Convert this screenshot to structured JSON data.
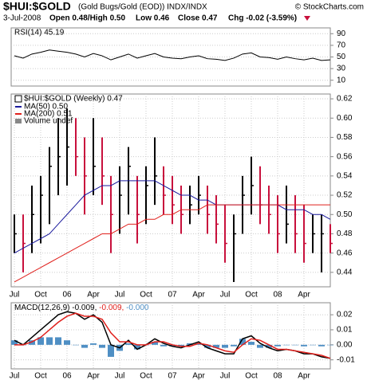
{
  "header": {
    "symbol": "$HUI:$GOLD",
    "description": "(Gold Bugs/Gold (EOD)) INDX/INDX",
    "source": "© StockCharts.com",
    "date": "3-Jul-2008",
    "open_high": "Open 0.48/High 0.50",
    "low": "Low 0.46",
    "close": "Close 0.47",
    "change": "Chg -0.02 (-3.59%)"
  },
  "chart_data": [
    {
      "type": "line",
      "ylim": [
        0,
        100
      ],
      "yticks": [
        10,
        30,
        50,
        70,
        90
      ],
      "grid": true,
      "series": [
        {
          "name": "RSI(14) 45.19",
          "color": "#000000",
          "values": [
            52,
            48,
            55,
            58,
            62,
            60,
            58,
            55,
            50,
            56,
            52,
            45,
            50,
            55,
            48,
            52,
            56,
            50,
            48,
            47,
            50,
            52,
            47,
            46,
            44,
            48,
            55,
            57,
            50,
            49,
            46,
            50,
            47,
            45,
            48,
            44,
            45
          ]
        }
      ]
    },
    {
      "type": "ohlc",
      "ylim": [
        0.425,
        0.625
      ],
      "grid": true,
      "yticks": [
        0.44,
        0.46,
        0.48,
        {
          "value": 0.5,
          "label": "0.50"
        },
        0.52,
        0.54,
        0.56,
        0.58,
        {
          "value": 0.6,
          "label": "0.60"
        },
        0.62
      ],
      "categories": [
        "Jul",
        null,
        null,
        "Oct",
        null,
        null,
        "06",
        null,
        null,
        "Apr",
        null,
        null,
        "Jul",
        null,
        null,
        "Oct",
        null,
        null,
        "07",
        null,
        null,
        "Apr",
        null,
        null,
        "Jul",
        null,
        null,
        "Oct",
        null,
        null,
        "08",
        null,
        null,
        "Apr",
        null,
        null,
        null
      ],
      "ohlc": {
        "name": "$HUI:$GOLD (Weekly) 0.47",
        "up_color": "#000000",
        "down_color": "#c8103c",
        "high": [
          0.5,
          0.5,
          0.53,
          0.54,
          0.57,
          0.6,
          0.61,
          0.6,
          0.58,
          0.6,
          0.58,
          0.54,
          0.55,
          0.57,
          0.54,
          0.55,
          0.58,
          0.55,
          0.54,
          0.53,
          0.53,
          0.54,
          0.53,
          0.52,
          0.51,
          0.5,
          0.54,
          0.56,
          0.55,
          0.53,
          0.52,
          0.53,
          0.52,
          0.51,
          0.5,
          0.5,
          0.49
        ],
        "low": [
          0.46,
          0.44,
          0.46,
          0.47,
          0.49,
          0.52,
          0.53,
          0.54,
          0.5,
          0.52,
          0.51,
          0.46,
          0.48,
          0.5,
          0.47,
          0.49,
          0.51,
          0.5,
          0.49,
          0.48,
          0.49,
          0.5,
          0.48,
          0.47,
          0.45,
          0.43,
          0.48,
          0.5,
          0.49,
          0.48,
          0.46,
          0.47,
          0.46,
          0.45,
          0.46,
          0.44,
          0.46
        ],
        "close": [
          0.48,
          0.47,
          0.5,
          0.52,
          0.55,
          0.56,
          0.57,
          0.56,
          0.54,
          0.55,
          0.54,
          0.5,
          0.52,
          0.55,
          0.5,
          0.53,
          0.54,
          0.52,
          0.51,
          0.5,
          0.51,
          0.52,
          0.5,
          0.49,
          0.47,
          0.48,
          0.52,
          0.53,
          0.51,
          0.5,
          0.48,
          0.49,
          0.48,
          0.47,
          0.48,
          0.48,
          0.47
        ]
      },
      "series": [
        {
          "name": "MA(50) 0.50",
          "color": "#1a1a9c",
          "values": [
            0.46,
            0.465,
            0.47,
            0.475,
            0.48,
            0.49,
            0.5,
            0.51,
            0.52,
            0.525,
            0.53,
            0.53,
            0.535,
            0.535,
            0.535,
            0.535,
            0.535,
            0.53,
            0.525,
            0.52,
            0.52,
            0.515,
            0.515,
            0.51,
            0.51,
            0.51,
            0.51,
            0.51,
            0.51,
            0.51,
            0.51,
            0.505,
            0.505,
            0.505,
            0.5,
            0.5,
            0.495
          ]
        },
        {
          "name": "MA(200) 0.51",
          "color": "#e0201c",
          "values": [
            0.43,
            0.435,
            0.44,
            0.445,
            0.45,
            0.455,
            0.46,
            0.465,
            0.47,
            0.475,
            0.48,
            0.48,
            0.485,
            0.49,
            0.49,
            0.495,
            0.495,
            0.5,
            0.5,
            0.505,
            0.505,
            0.505,
            0.51,
            0.51,
            0.51,
            0.51,
            0.51,
            0.51,
            0.51,
            0.51,
            0.51,
            0.51,
            0.51,
            0.51,
            0.51,
            0.51,
            0.51
          ]
        }
      ],
      "volume_label": "Volume undef"
    },
    {
      "type": "combo",
      "ylim": [
        -0.016,
        0.028
      ],
      "grid": true,
      "yticks": [
        -0.01,
        {
          "value": 0,
          "label": "0.00"
        },
        0.01,
        0.02
      ],
      "categories": [
        "Jul",
        null,
        null,
        "Oct",
        null,
        null,
        "06",
        null,
        null,
        "Apr",
        null,
        null,
        "Jul",
        null,
        null,
        "Oct",
        null,
        null,
        "07",
        null,
        null,
        "Apr",
        null,
        null,
        "Jul",
        null,
        null,
        "Oct",
        null,
        null,
        "08",
        null,
        null,
        "Apr",
        null,
        null,
        null
      ],
      "series": [
        {
          "name": "-0.000",
          "color": "#4f8fc4",
          "kind": "bar",
          "values": [
            0.003,
            0,
            0.003,
            0.005,
            0.005,
            0.005,
            0.003,
            0,
            -0.002,
            0.001,
            -0.002,
            -0.008,
            -0.004,
            0.001,
            -0.003,
            0,
            0.002,
            -0.001,
            -0.001,
            -0.001,
            0.001,
            0.001,
            -0.002,
            -0.002,
            -0.002,
            -0.001,
            0.004,
            0.002,
            -0.002,
            -0.002,
            -0.001,
            0,
            0,
            -0.001,
            0,
            -0.001,
            0
          ]
        },
        {
          "name": "MACD(12,26,9) -0.009,",
          "color": "#000000",
          "kind": "line",
          "values": [
            0.003,
            0.0,
            0.005,
            0.01,
            0.015,
            0.02,
            0.022,
            0.021,
            0.017,
            0.02,
            0.015,
            0.0,
            -0.002,
            0.003,
            -0.003,
            0.0,
            0.004,
            0.001,
            -0.001,
            -0.002,
            0.0,
            0.002,
            -0.002,
            -0.004,
            -0.006,
            -0.006,
            0.004,
            0.006,
            0.001,
            -0.002,
            -0.004,
            -0.003,
            -0.004,
            -0.006,
            -0.006,
            -0.008,
            -0.009
          ]
        },
        {
          "name": "-0.009,",
          "color": "#e0201c",
          "kind": "line",
          "values": [
            0.0,
            0.0,
            0.002,
            0.005,
            0.01,
            0.015,
            0.019,
            0.021,
            0.019,
            0.019,
            0.017,
            0.008,
            0.002,
            0.002,
            0.0,
            0.0,
            0.002,
            0.002,
            0.0,
            -0.001,
            -0.001,
            0.001,
            0.0,
            -0.002,
            -0.004,
            -0.005,
            0.0,
            0.004,
            0.003,
            0.0,
            -0.003,
            -0.003,
            -0.004,
            -0.005,
            -0.006,
            -0.007,
            -0.009
          ]
        }
      ]
    }
  ]
}
